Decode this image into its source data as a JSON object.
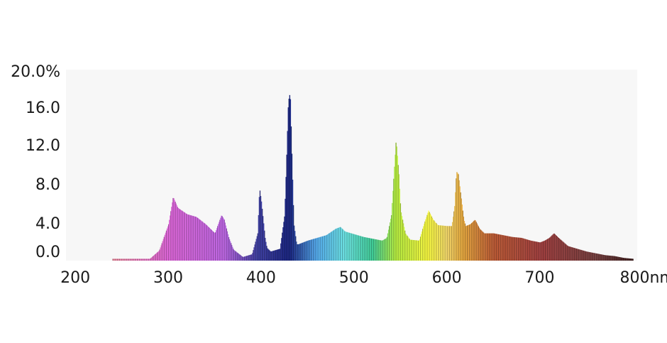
{
  "chart_data": {
    "type": "area",
    "title": "",
    "xlabel": "",
    "ylabel": "",
    "xlim": [
      190,
      805
    ],
    "ylim": [
      -1,
      20
    ],
    "x_ticks": [
      200,
      300,
      400,
      500,
      600,
      700,
      800
    ],
    "x_tick_labels": [
      "200",
      "300",
      "400",
      "500",
      "600",
      "700",
      "800nm"
    ],
    "y_ticks": [
      0,
      4,
      8,
      12,
      16,
      20
    ],
    "y_tick_labels": [
      "0.0",
      "4.0",
      "8.0",
      "12.0",
      "16.0",
      "20.0%"
    ],
    "grid": false,
    "legend": "none",
    "plot_background": "#f7f7f7",
    "series": [
      {
        "x": [
          240,
          250,
          280,
          290,
          300,
          305,
          310,
          320,
          330,
          340,
          350,
          357,
          360,
          365,
          370,
          380,
          390,
          396,
          398,
          400,
          402,
          404,
          406,
          410,
          420,
          425,
          427,
          429,
          431,
          433,
          435,
          438,
          440,
          450,
          460,
          470,
          480,
          485,
          490,
          500,
          510,
          520,
          530,
          535,
          540,
          543,
          545,
          548,
          550,
          555,
          560,
          570,
          575,
          580,
          585,
          590,
          600,
          605,
          608,
          610,
          612,
          615,
          618,
          620,
          625,
          630,
          635,
          640,
          650,
          660,
          670,
          680,
          690,
          700,
          705,
          710,
          715,
          720,
          730,
          740,
          750,
          760,
          770,
          780,
          790,
          800
        ],
        "values": [
          -0.8,
          -0.8,
          -0.8,
          0.1,
          3.0,
          6.0,
          4.8,
          4.1,
          3.8,
          3.0,
          2.0,
          4.0,
          3.5,
          1.5,
          0.2,
          -0.6,
          -0.3,
          2.0,
          7.0,
          5.5,
          3.5,
          1.5,
          0.4,
          0.0,
          0.3,
          4.0,
          10.0,
          16.5,
          17.5,
          10.0,
          3.0,
          0.8,
          0.8,
          1.2,
          1.5,
          1.8,
          2.5,
          2.7,
          2.2,
          1.9,
          1.6,
          1.4,
          1.2,
          1.5,
          4.0,
          9.0,
          12.3,
          8.5,
          4.5,
          2.0,
          1.3,
          1.2,
          3.0,
          4.5,
          3.5,
          2.9,
          2.8,
          2.8,
          5.0,
          8.8,
          8.5,
          6.0,
          3.5,
          2.8,
          3.0,
          3.5,
          2.5,
          2.0,
          2.0,
          1.8,
          1.6,
          1.5,
          1.2,
          1.0,
          1.2,
          1.5,
          2.0,
          1.5,
          0.6,
          0.3,
          0.0,
          -0.2,
          -0.4,
          -0.5,
          -0.7,
          -0.8
        ]
      }
    ]
  }
}
